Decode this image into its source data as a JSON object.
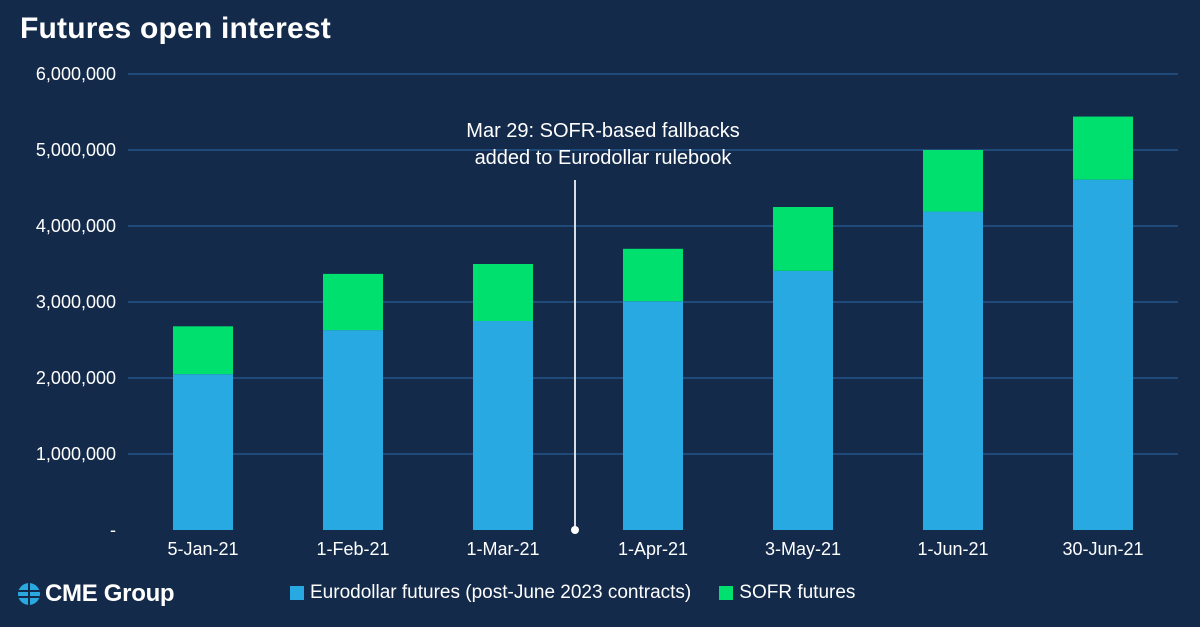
{
  "title": "Futures open interest",
  "brand": {
    "name": "CME Group",
    "logo_icon": "globe-icon",
    "logo_color": "#2aa8e0"
  },
  "colors": {
    "background": "#132a4a",
    "eurodollar": "#29a9e1",
    "sofr": "#00e06f",
    "grid": "#2e6aa8",
    "annotation_line": "#d8dde5"
  },
  "annotation": {
    "lines": [
      "Mar 29: SOFR-based fallbacks",
      "added to Eurodollar rulebook"
    ],
    "date": "Mar 29"
  },
  "chart_data": {
    "type": "bar",
    "stacked": true,
    "title": "Futures open interest",
    "categories": [
      "5-Jan-21",
      "1-Feb-21",
      "1-Mar-21",
      "1-Apr-21",
      "3-May-21",
      "1-Jun-21",
      "30-Jun-21"
    ],
    "series": [
      {
        "name": "Eurodollar futures (post-June 2023 contracts)",
        "values": [
          2050000,
          2630000,
          2750000,
          3010000,
          3410000,
          4190000,
          4610000
        ]
      },
      {
        "name": "SOFR futures",
        "values": [
          630000,
          740000,
          750000,
          690000,
          840000,
          810000,
          830000
        ]
      }
    ],
    "ylim": [
      0,
      6000000
    ],
    "yticks": [
      0,
      1000000,
      2000000,
      3000000,
      4000000,
      5000000,
      6000000
    ],
    "ytick_labels": [
      "-",
      "1,000,000",
      "2,000,000",
      "3,000,000",
      "4,000,000",
      "5,000,000",
      "6,000,000"
    ],
    "grid": true,
    "legend_position": "bottom"
  }
}
